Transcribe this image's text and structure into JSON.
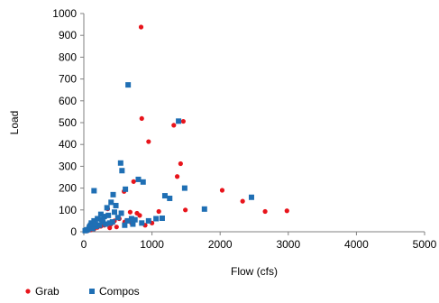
{
  "chart_data": {
    "type": "scatter",
    "title": "",
    "xlabel": "Flow (cfs)",
    "ylabel": "Load",
    "xlim": [
      0,
      5000
    ],
    "ylim": [
      0,
      1000
    ],
    "x_ticks": [
      "0",
      "1000",
      "2000",
      "3000",
      "4000",
      "5000"
    ],
    "y_ticks": [
      "0",
      "100",
      "200",
      "300",
      "400",
      "500",
      "600",
      "700",
      "800",
      "900",
      "1000"
    ],
    "grid": false,
    "legend_position": "bottom-left",
    "series": [
      {
        "name": "Grab",
        "marker": "circle",
        "color": "#e8141b",
        "points": [
          [
            840,
            938
          ],
          [
            850,
            519
          ],
          [
            950,
            413
          ],
          [
            1320,
            488
          ],
          [
            1460,
            506
          ],
          [
            1420,
            312
          ],
          [
            1370,
            253
          ],
          [
            2030,
            190
          ],
          [
            2330,
            140
          ],
          [
            2660,
            93
          ],
          [
            2980,
            96
          ],
          [
            1490,
            100
          ],
          [
            1100,
            93
          ],
          [
            730,
            230
          ],
          [
            590,
            185
          ],
          [
            780,
            85
          ],
          [
            820,
            75
          ],
          [
            680,
            90
          ],
          [
            520,
            60
          ],
          [
            450,
            50
          ],
          [
            1000,
            40
          ],
          [
            350,
            105
          ],
          [
            300,
            30
          ],
          [
            250,
            25
          ],
          [
            200,
            20
          ],
          [
            150,
            12
          ],
          [
            100,
            8
          ],
          [
            60,
            5
          ],
          [
            400,
            35
          ],
          [
            600,
            45
          ],
          [
            700,
            40
          ],
          [
            900,
            30
          ],
          [
            380,
            18
          ],
          [
            480,
            22
          ]
        ]
      },
      {
        "name": "Compos",
        "marker": "square",
        "color": "#1f6fb4",
        "points": [
          [
            650,
            673
          ],
          [
            1390,
            507
          ],
          [
            540,
            315
          ],
          [
            560,
            280
          ],
          [
            800,
            240
          ],
          [
            870,
            228
          ],
          [
            1480,
            200
          ],
          [
            150,
            188
          ],
          [
            430,
            170
          ],
          [
            610,
            195
          ],
          [
            1190,
            165
          ],
          [
            1260,
            153
          ],
          [
            2460,
            158
          ],
          [
            1770,
            104
          ],
          [
            400,
            135
          ],
          [
            340,
            110
          ],
          [
            250,
            80
          ],
          [
            200,
            60
          ],
          [
            150,
            50
          ],
          [
            100,
            30
          ],
          [
            80,
            20
          ],
          [
            60,
            10
          ],
          [
            300,
            70
          ],
          [
            450,
            90
          ],
          [
            500,
            65
          ],
          [
            550,
            85
          ],
          [
            700,
            60
          ],
          [
            750,
            55
          ],
          [
            1060,
            60
          ],
          [
            1150,
            62
          ],
          [
            950,
            50
          ],
          [
            850,
            40
          ],
          [
            420,
            45
          ],
          [
            380,
            40
          ],
          [
            320,
            35
          ],
          [
            280,
            45
          ],
          [
            230,
            30
          ],
          [
            180,
            25
          ],
          [
            130,
            15
          ],
          [
            110,
            40
          ],
          [
            90,
            25
          ],
          [
            40,
            8
          ],
          [
            20,
            5
          ],
          [
            470,
            120
          ],
          [
            360,
            75
          ],
          [
            600,
            30
          ],
          [
            640,
            50
          ],
          [
            720,
            35
          ],
          [
            260,
            55
          ],
          [
            170,
            35
          ]
        ]
      }
    ]
  }
}
